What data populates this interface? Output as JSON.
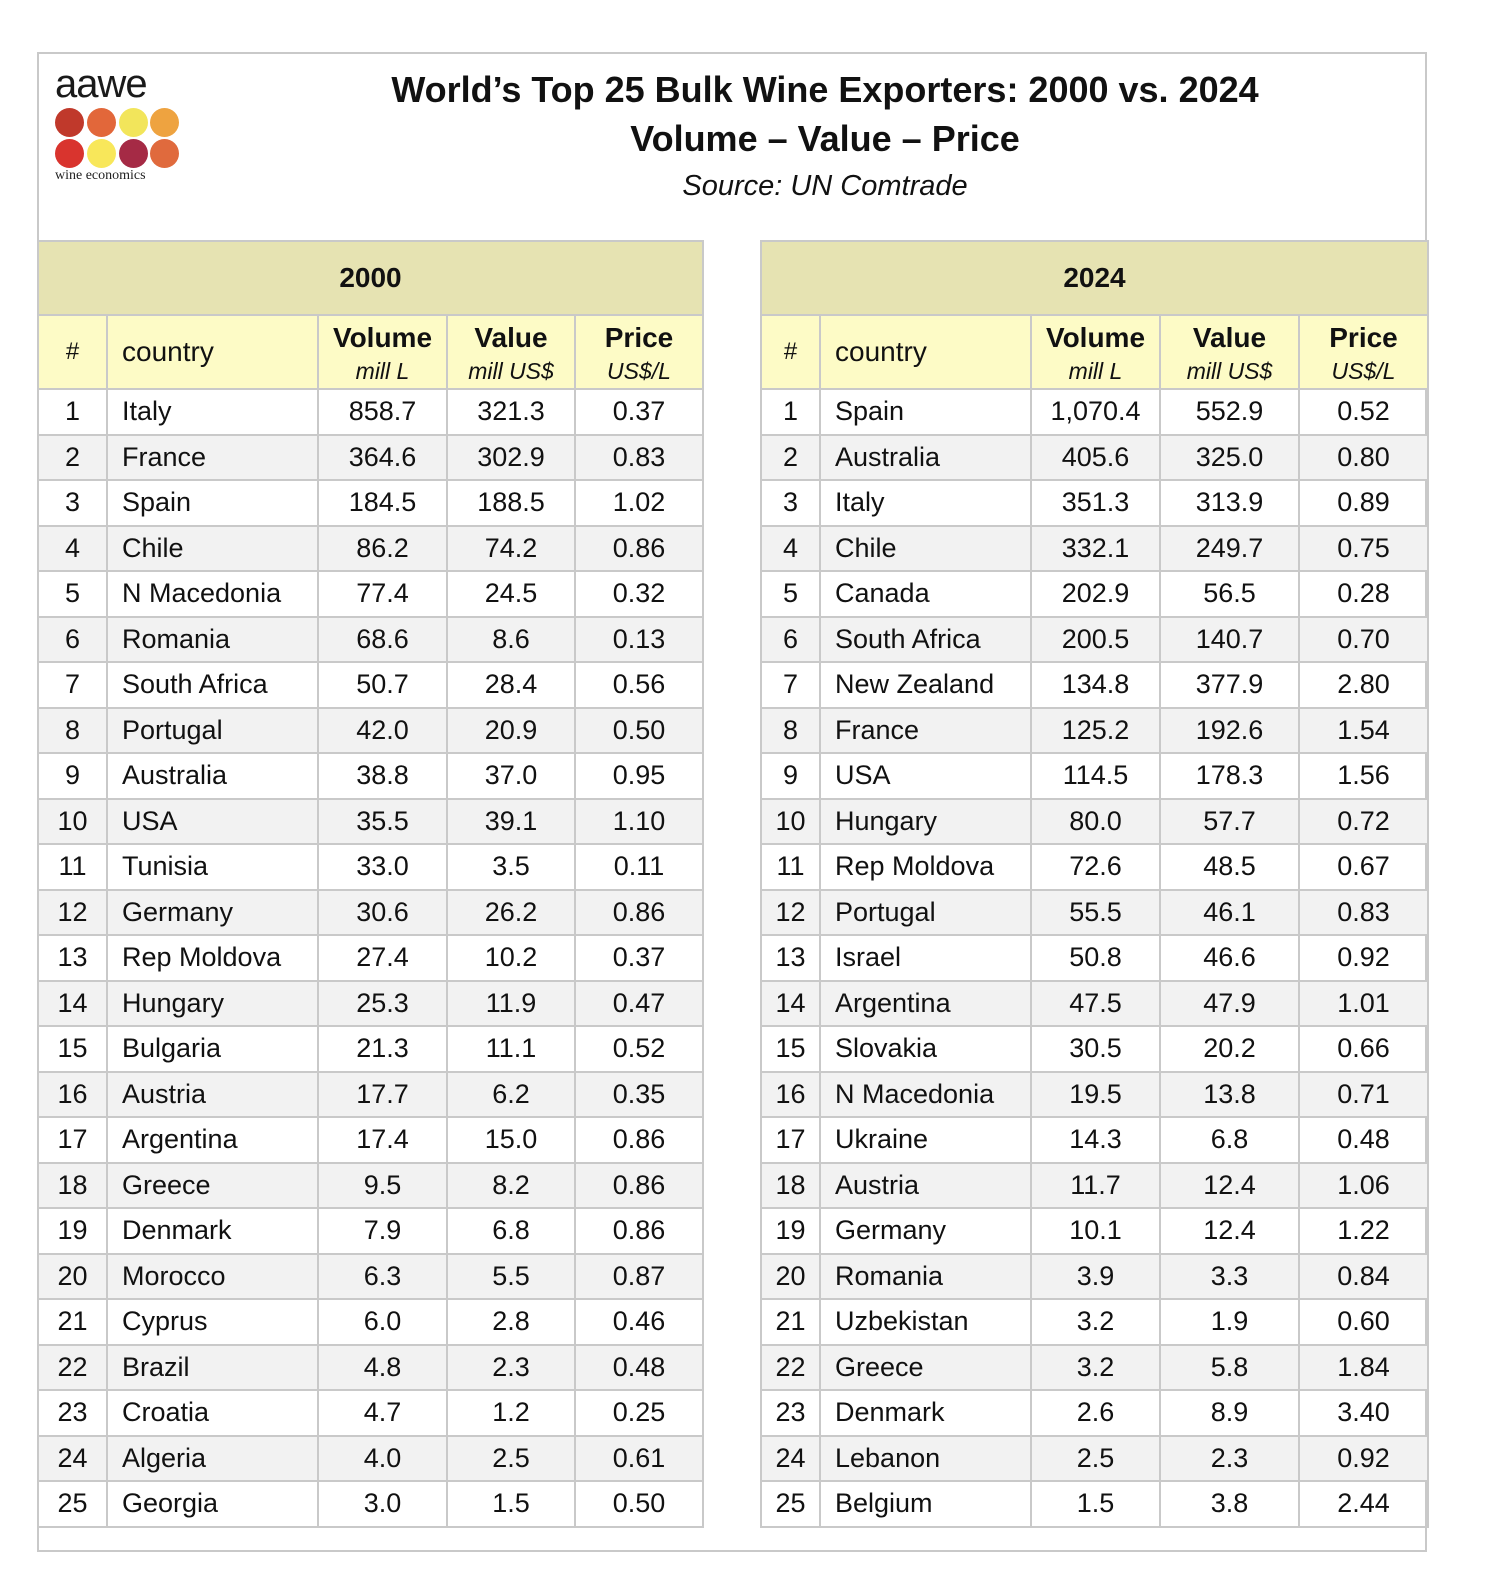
{
  "logo": {
    "wordmark": "aawe",
    "subtitle": "wine economics",
    "dot_colors": [
      "#c0392b",
      "#e2673a",
      "#f2e55b",
      "#eea340",
      "#d9342e",
      "#f8e75a",
      "#a52a45",
      "#e06a3d"
    ]
  },
  "header": {
    "title_line1": "World’s Top 25 Bulk Wine Exporters: 2000 vs. 2024",
    "title_line2": "Volume – Value – Price",
    "source": "Source: UN Comtrade"
  },
  "columns": {
    "rank": "#",
    "country": "country",
    "volume": "Volume",
    "volume_unit": "mill L",
    "value": "Value",
    "value_unit": "mill US$",
    "price": "Price",
    "price_unit": "US$/L"
  },
  "chart_data": {
    "type": "table",
    "title": "World’s Top 25 Bulk Wine Exporters: 2000 vs. 2024",
    "subtitle": "Volume – Value – Price",
    "source": "Source: UN Comtrade",
    "tables": [
      {
        "year": "2000",
        "rows": [
          {
            "rank": "1",
            "country": "Italy",
            "volume": "858.7",
            "value": "321.3",
            "price": "0.37"
          },
          {
            "rank": "2",
            "country": "France",
            "volume": "364.6",
            "value": "302.9",
            "price": "0.83"
          },
          {
            "rank": "3",
            "country": "Spain",
            "volume": "184.5",
            "value": "188.5",
            "price": "1.02"
          },
          {
            "rank": "4",
            "country": "Chile",
            "volume": "86.2",
            "value": "74.2",
            "price": "0.86"
          },
          {
            "rank": "5",
            "country": "N Macedonia",
            "volume": "77.4",
            "value": "24.5",
            "price": "0.32"
          },
          {
            "rank": "6",
            "country": "Romania",
            "volume": "68.6",
            "value": "8.6",
            "price": "0.13"
          },
          {
            "rank": "7",
            "country": "South Africa",
            "volume": "50.7",
            "value": "28.4",
            "price": "0.56"
          },
          {
            "rank": "8",
            "country": "Portugal",
            "volume": "42.0",
            "value": "20.9",
            "price": "0.50"
          },
          {
            "rank": "9",
            "country": "Australia",
            "volume": "38.8",
            "value": "37.0",
            "price": "0.95"
          },
          {
            "rank": "10",
            "country": "USA",
            "volume": "35.5",
            "value": "39.1",
            "price": "1.10"
          },
          {
            "rank": "11",
            "country": "Tunisia",
            "volume": "33.0",
            "value": "3.5",
            "price": "0.11"
          },
          {
            "rank": "12",
            "country": "Germany",
            "volume": "30.6",
            "value": "26.2",
            "price": "0.86"
          },
          {
            "rank": "13",
            "country": "Rep Moldova",
            "volume": "27.4",
            "value": "10.2",
            "price": "0.37"
          },
          {
            "rank": "14",
            "country": "Hungary",
            "volume": "25.3",
            "value": "11.9",
            "price": "0.47"
          },
          {
            "rank": "15",
            "country": "Bulgaria",
            "volume": "21.3",
            "value": "11.1",
            "price": "0.52"
          },
          {
            "rank": "16",
            "country": "Austria",
            "volume": "17.7",
            "value": "6.2",
            "price": "0.35"
          },
          {
            "rank": "17",
            "country": "Argentina",
            "volume": "17.4",
            "value": "15.0",
            "price": "0.86"
          },
          {
            "rank": "18",
            "country": "Greece",
            "volume": "9.5",
            "value": "8.2",
            "price": "0.86"
          },
          {
            "rank": "19",
            "country": "Denmark",
            "volume": "7.9",
            "value": "6.8",
            "price": "0.86"
          },
          {
            "rank": "20",
            "country": "Morocco",
            "volume": "6.3",
            "value": "5.5",
            "price": "0.87"
          },
          {
            "rank": "21",
            "country": "Cyprus",
            "volume": "6.0",
            "value": "2.8",
            "price": "0.46"
          },
          {
            "rank": "22",
            "country": "Brazil",
            "volume": "4.8",
            "value": "2.3",
            "price": "0.48"
          },
          {
            "rank": "23",
            "country": "Croatia",
            "volume": "4.7",
            "value": "1.2",
            "price": "0.25"
          },
          {
            "rank": "24",
            "country": "Algeria",
            "volume": "4.0",
            "value": "2.5",
            "price": "0.61"
          },
          {
            "rank": "25",
            "country": "Georgia",
            "volume": "3.0",
            "value": "1.5",
            "price": "0.50"
          }
        ]
      },
      {
        "year": "2024",
        "rows": [
          {
            "rank": "1",
            "country": "Spain",
            "volume": "1,070.4",
            "value": "552.9",
            "price": "0.52"
          },
          {
            "rank": "2",
            "country": "Australia",
            "volume": "405.6",
            "value": "325.0",
            "price": "0.80"
          },
          {
            "rank": "3",
            "country": "Italy",
            "volume": "351.3",
            "value": "313.9",
            "price": "0.89"
          },
          {
            "rank": "4",
            "country": "Chile",
            "volume": "332.1",
            "value": "249.7",
            "price": "0.75"
          },
          {
            "rank": "5",
            "country": "Canada",
            "volume": "202.9",
            "value": "56.5",
            "price": "0.28"
          },
          {
            "rank": "6",
            "country": "South Africa",
            "volume": "200.5",
            "value": "140.7",
            "price": "0.70"
          },
          {
            "rank": "7",
            "country": "New Zealand",
            "volume": "134.8",
            "value": "377.9",
            "price": "2.80"
          },
          {
            "rank": "8",
            "country": "France",
            "volume": "125.2",
            "value": "192.6",
            "price": "1.54"
          },
          {
            "rank": "9",
            "country": "USA",
            "volume": "114.5",
            "value": "178.3",
            "price": "1.56"
          },
          {
            "rank": "10",
            "country": "Hungary",
            "volume": "80.0",
            "value": "57.7",
            "price": "0.72"
          },
          {
            "rank": "11",
            "country": "Rep Moldova",
            "volume": "72.6",
            "value": "48.5",
            "price": "0.67"
          },
          {
            "rank": "12",
            "country": "Portugal",
            "volume": "55.5",
            "value": "46.1",
            "price": "0.83"
          },
          {
            "rank": "13",
            "country": "Israel",
            "volume": "50.8",
            "value": "46.6",
            "price": "0.92"
          },
          {
            "rank": "14",
            "country": "Argentina",
            "volume": "47.5",
            "value": "47.9",
            "price": "1.01"
          },
          {
            "rank": "15",
            "country": "Slovakia",
            "volume": "30.5",
            "value": "20.2",
            "price": "0.66"
          },
          {
            "rank": "16",
            "country": "N Macedonia",
            "volume": "19.5",
            "value": "13.8",
            "price": "0.71"
          },
          {
            "rank": "17",
            "country": "Ukraine",
            "volume": "14.3",
            "value": "6.8",
            "price": "0.48"
          },
          {
            "rank": "18",
            "country": "Austria",
            "volume": "11.7",
            "value": "12.4",
            "price": "1.06"
          },
          {
            "rank": "19",
            "country": "Germany",
            "volume": "10.1",
            "value": "12.4",
            "price": "1.22"
          },
          {
            "rank": "20",
            "country": "Romania",
            "volume": "3.9",
            "value": "3.3",
            "price": "0.84"
          },
          {
            "rank": "21",
            "country": "Uzbekistan",
            "volume": "3.2",
            "value": "1.9",
            "price": "0.60"
          },
          {
            "rank": "22",
            "country": "Greece",
            "volume": "3.2",
            "value": "5.8",
            "price": "1.84"
          },
          {
            "rank": "23",
            "country": "Denmark",
            "volume": "2.6",
            "value": "8.9",
            "price": "3.40"
          },
          {
            "rank": "24",
            "country": "Lebanon",
            "volume": "2.5",
            "value": "2.3",
            "price": "0.92"
          },
          {
            "rank": "25",
            "country": "Belgium",
            "volume": "1.5",
            "value": "3.8",
            "price": "2.44"
          }
        ]
      }
    ]
  }
}
